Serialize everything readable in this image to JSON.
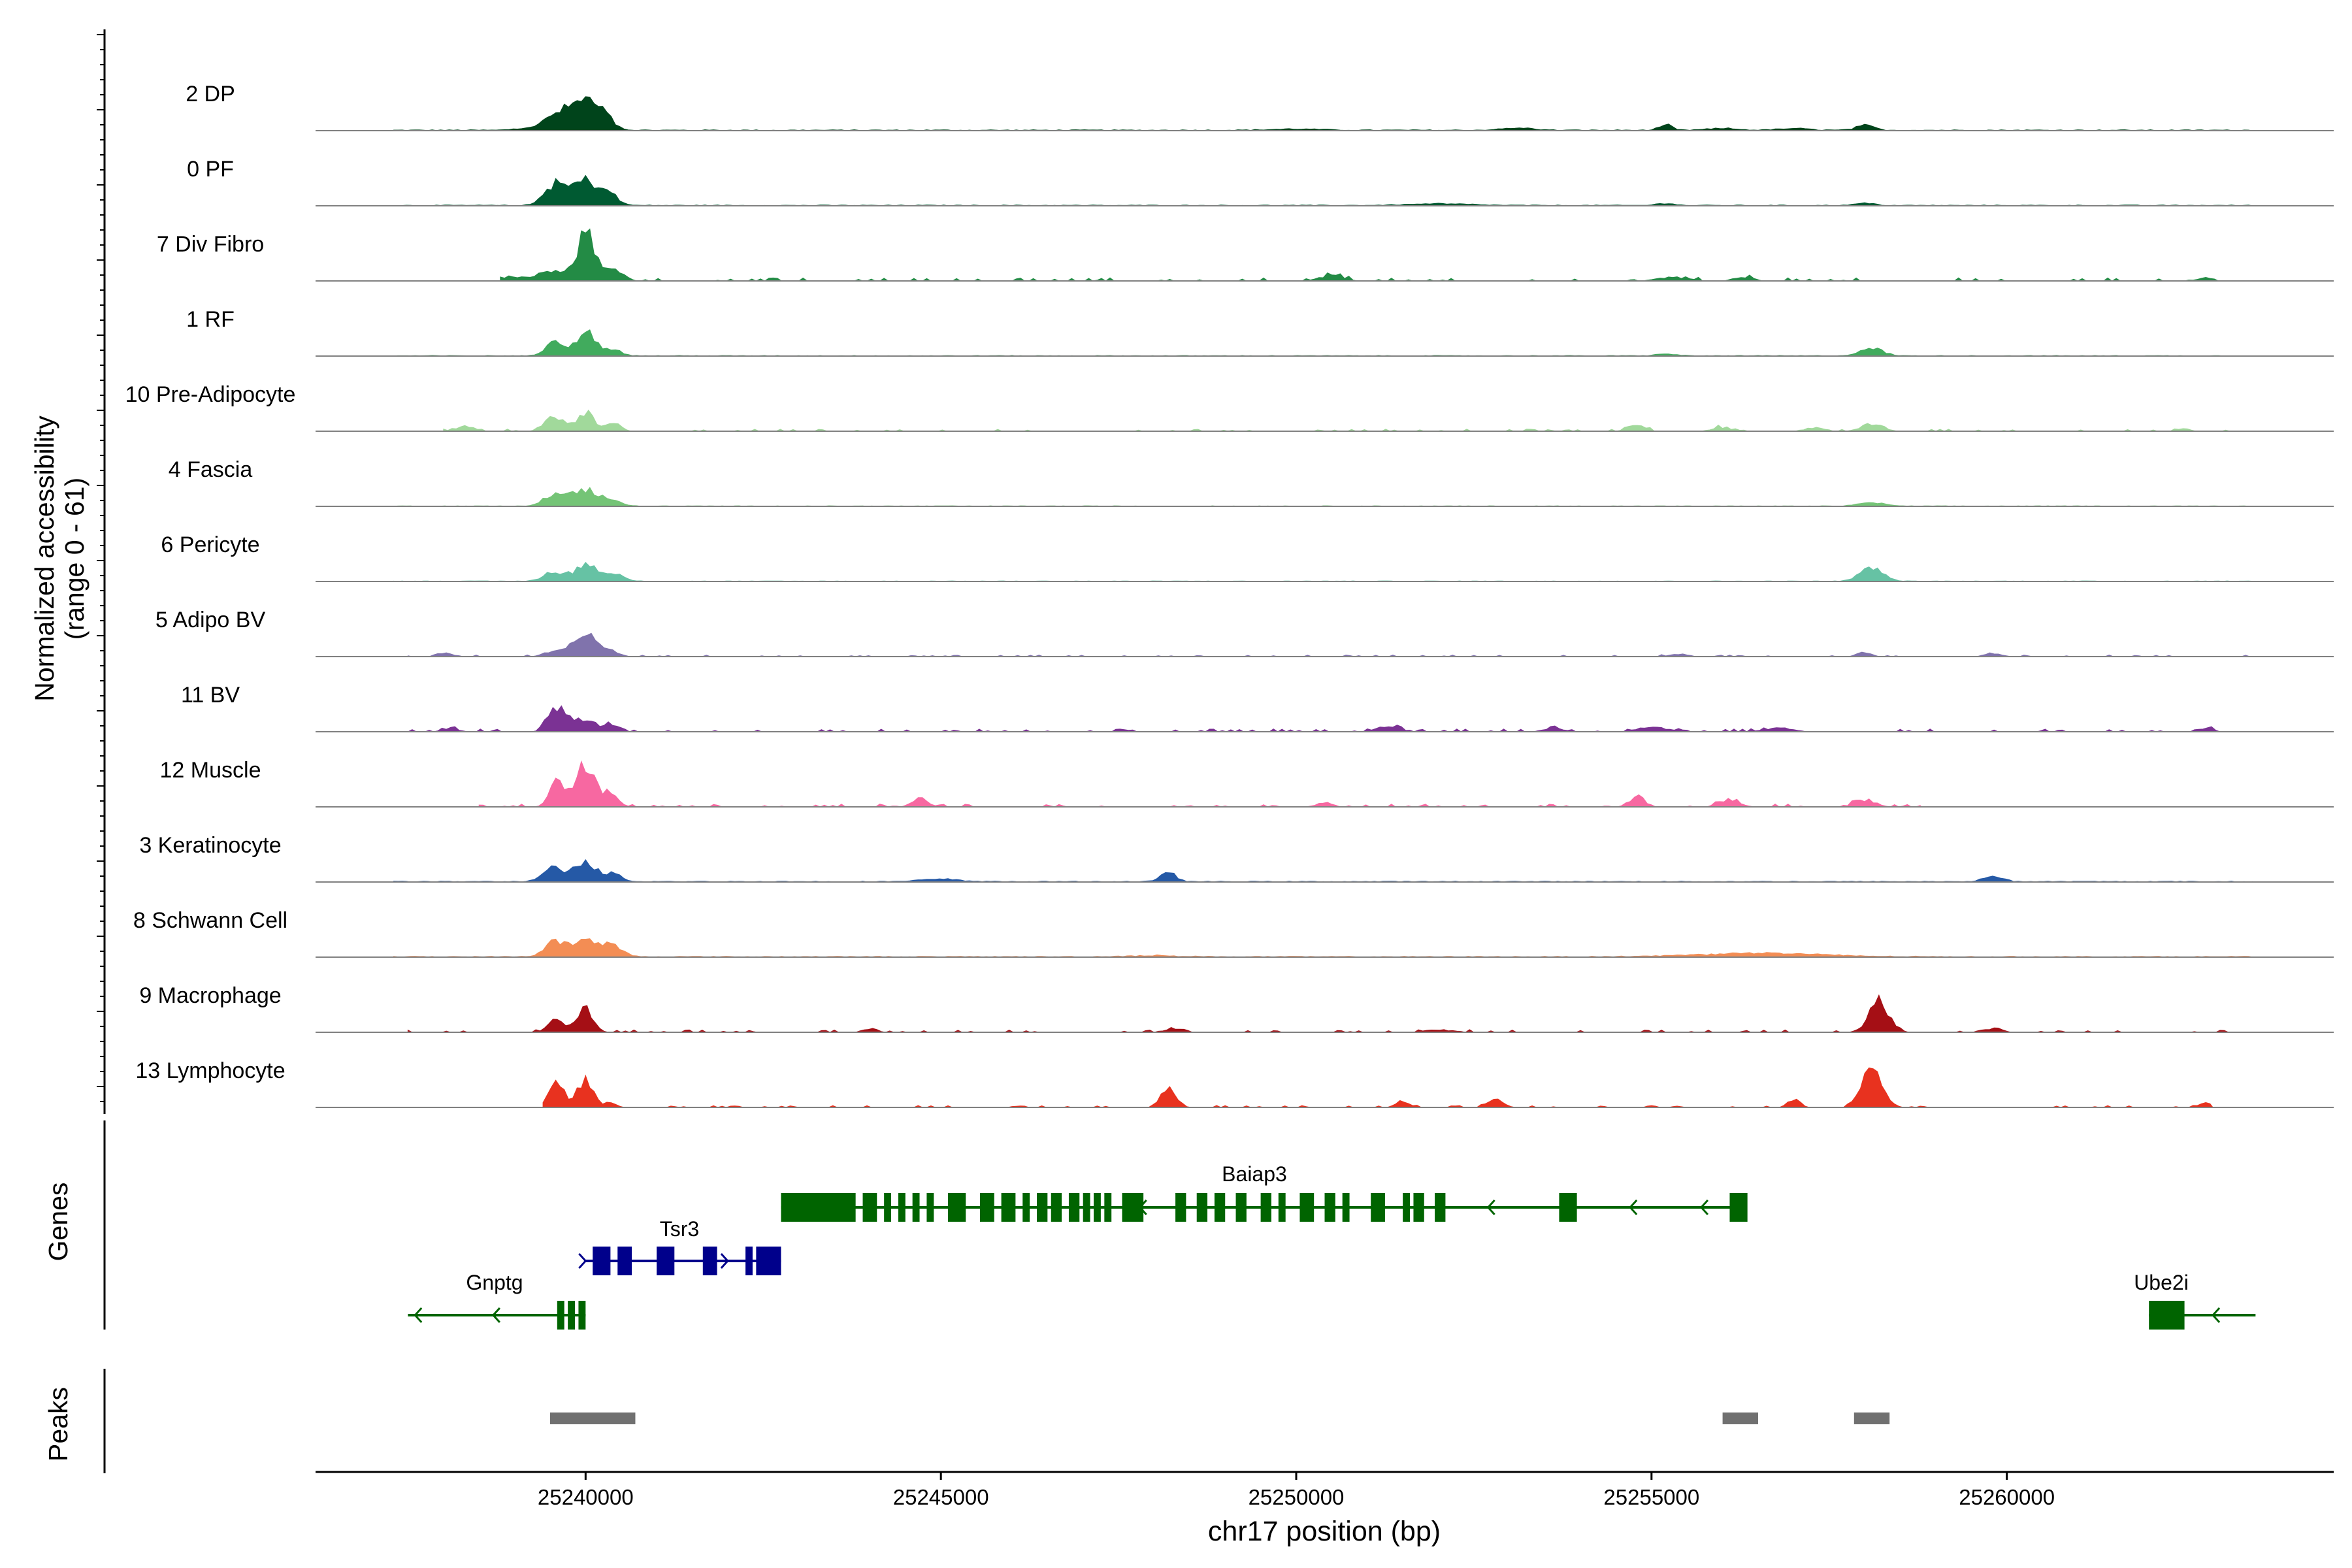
{
  "chart_data": {
    "type": "area",
    "title": "",
    "chromosome": "chr17",
    "xlabel": "chr17 position (bp)",
    "ylabel_line1": "Normalized accessibility",
    "ylabel_line2": "(range 0 - 61)",
    "y_range": [
      0,
      61
    ],
    "xlim": [
      25236200,
      25264600
    ],
    "x_ticks": [
      25240000,
      25245000,
      25250000,
      25255000,
      25260000
    ],
    "x_tick_labels": [
      "25240000",
      "25245000",
      "25250000",
      "25255000",
      "25260000"
    ],
    "tracks": [
      {
        "name": "2 DP",
        "color": "#00441b",
        "peaks": [
          [
            25239600,
            12,
            240
          ],
          [
            25240000,
            25,
            280
          ],
          [
            25240300,
            6,
            150
          ],
          [
            25239200,
            2,
            250
          ],
          [
            25253100,
            2,
            300
          ],
          [
            25255200,
            5,
            120
          ],
          [
            25258000,
            4,
            180
          ],
          [
            25257000,
            1.5,
            300
          ],
          [
            25256000,
            1.5,
            300
          ],
          [
            25250000,
            1,
            500
          ]
        ],
        "noise": 0.8,
        "range": [
          25237300,
          25263500
        ]
      },
      {
        "name": "0 PF",
        "color": "#005a32",
        "peaks": [
          [
            25239550,
            16,
            200
          ],
          [
            25240000,
            21,
            300
          ],
          [
            25240350,
            6,
            150
          ],
          [
            25252000,
            1.5,
            600
          ],
          [
            25258000,
            2,
            200
          ],
          [
            25255200,
            2,
            160
          ]
        ],
        "noise": 0.7,
        "range": [
          25237300,
          25263500
        ]
      },
      {
        "name": "7 Div Fibro",
        "color": "#238b45",
        "peaks": [
          [
            25240000,
            40,
            180
          ],
          [
            25239500,
            8,
            250
          ],
          [
            25240400,
            10,
            180
          ],
          [
            25239000,
            3,
            250
          ],
          [
            25250500,
            4,
            250
          ],
          [
            25255300,
            3,
            300
          ],
          [
            25256300,
            3,
            200
          ],
          [
            25262800,
            3,
            150
          ]
        ],
        "noise": 1.3,
        "range": [
          25238800,
          25263000
        ],
        "sparse": true
      },
      {
        "name": "1 RF",
        "color": "#41ab5d",
        "peaks": [
          [
            25239550,
            11,
            160
          ],
          [
            25240000,
            20,
            200
          ],
          [
            25240400,
            6,
            150
          ],
          [
            25258100,
            6,
            220
          ],
          [
            25255200,
            1.5,
            200
          ]
        ],
        "noise": 0.6,
        "range": [
          25237300,
          25263500
        ]
      },
      {
        "name": "10 Pre-Adipocyte",
        "color": "#a1d99b",
        "peaks": [
          [
            25239550,
            12,
            180
          ],
          [
            25240000,
            15,
            180
          ],
          [
            25240400,
            6,
            150
          ],
          [
            25238300,
            4,
            180
          ],
          [
            25254800,
            5,
            160
          ],
          [
            25258100,
            6,
            200
          ],
          [
            25257300,
            3,
            200
          ],
          [
            25256000,
            3,
            200
          ],
          [
            25262500,
            2,
            120
          ]
        ],
        "noise": 0.9,
        "range": [
          25238000,
          25263500
        ],
        "sparse": true
      },
      {
        "name": "4 Fascia",
        "color": "#74c476",
        "peaks": [
          [
            25239550,
            10,
            200
          ],
          [
            25240000,
            14,
            260
          ],
          [
            25240400,
            5,
            150
          ],
          [
            25258100,
            3,
            250
          ]
        ],
        "noise": 0.5,
        "range": [
          25237300,
          25263500
        ]
      },
      {
        "name": "6 Pericyte",
        "color": "#66c2a4",
        "peaks": [
          [
            25239550,
            8,
            200
          ],
          [
            25240000,
            14,
            220
          ],
          [
            25240400,
            7,
            180
          ],
          [
            25258100,
            12,
            220
          ]
        ],
        "noise": 0.5,
        "range": [
          25237300,
          25263500
        ]
      },
      {
        "name": "5 Adipo BV",
        "color": "#8073ac",
        "peaks": [
          [
            25240000,
            20,
            220
          ],
          [
            25239600,
            6,
            200
          ],
          [
            25240400,
            4,
            150
          ],
          [
            25238000,
            3,
            150
          ],
          [
            25258000,
            3,
            150
          ],
          [
            25259800,
            3,
            150
          ],
          [
            25255400,
            2,
            200
          ]
        ],
        "noise": 0.7,
        "range": [
          25237500,
          25263500
        ],
        "sparse": true
      },
      {
        "name": "11 BV",
        "color": "#7b3294",
        "peaks": [
          [
            25239600,
            22,
            160
          ],
          [
            25240000,
            12,
            200
          ],
          [
            25240400,
            6,
            150
          ],
          [
            25251300,
            5,
            200
          ],
          [
            25255000,
            4,
            300
          ],
          [
            25256800,
            3,
            300
          ],
          [
            25238100,
            3,
            150
          ],
          [
            25253600,
            3,
            200
          ],
          [
            25262800,
            3,
            150
          ]
        ],
        "noise": 1.2,
        "range": [
          25237500,
          25263000
        ],
        "sparse": true
      },
      {
        "name": "12 Muscle",
        "color": "#f768a1",
        "peaks": [
          [
            25240000,
            34,
            200
          ],
          [
            25239600,
            20,
            150
          ],
          [
            25240350,
            10,
            150
          ],
          [
            25244700,
            7,
            150
          ],
          [
            25254800,
            9,
            150
          ],
          [
            25256100,
            6,
            200
          ],
          [
            25258000,
            6,
            200
          ],
          [
            25250400,
            4,
            150
          ]
        ],
        "noise": 1.2,
        "range": [
          25238500,
          25258800
        ],
        "sparse": true
      },
      {
        "name": "3 Keratinocyte",
        "color": "#2559a6",
        "peaks": [
          [
            25239550,
            11,
            200
          ],
          [
            25240000,
            17,
            220
          ],
          [
            25240400,
            6,
            150
          ],
          [
            25248200,
            8,
            150
          ],
          [
            25259800,
            4,
            200
          ],
          [
            25245000,
            2,
            400
          ]
        ],
        "noise": 0.8,
        "range": [
          25237300,
          25263500
        ]
      },
      {
        "name": "8 Schwann Cell",
        "color": "#f38d54",
        "peaks": [
          [
            25239550,
            11,
            200
          ],
          [
            25240000,
            14,
            300
          ],
          [
            25240400,
            7,
            200
          ],
          [
            25256500,
            3,
            1200
          ],
          [
            25248000,
            1,
            500
          ]
        ],
        "noise": 0.8,
        "range": [
          25237300,
          25263500
        ]
      },
      {
        "name": "9 Macrophage",
        "color": "#a50f15",
        "peaks": [
          [
            25240000,
            20,
            150
          ],
          [
            25239600,
            12,
            150
          ],
          [
            25258200,
            26,
            200
          ],
          [
            25248300,
            3,
            200
          ],
          [
            25252000,
            2,
            300
          ],
          [
            25259800,
            3,
            200
          ],
          [
            25244000,
            3,
            150
          ]
        ],
        "noise": 1.0,
        "range": [
          25237500,
          25263500
        ],
        "sparse": true
      },
      {
        "name": "13 Lymphocyte",
        "color": "#e8321f",
        "peaks": [
          [
            25239600,
            22,
            150
          ],
          [
            25240000,
            22,
            150
          ],
          [
            25240350,
            5,
            100
          ],
          [
            25248200,
            16,
            150
          ],
          [
            25258100,
            34,
            200
          ],
          [
            25257000,
            7,
            120
          ],
          [
            25251500,
            5,
            150
          ],
          [
            25252800,
            7,
            150
          ],
          [
            25262800,
            4,
            150
          ]
        ],
        "noise": 0.8,
        "range": [
          25239400,
          25262900
        ],
        "sparse": true
      }
    ],
    "genes_panel_label": "Genes",
    "genes": [
      {
        "name": "Baiap3",
        "strand": "-",
        "start": 25242750,
        "end": 25256300,
        "row": 0,
        "color": "#006400",
        "exons": [
          [
            25242750,
            25243800
          ],
          [
            25243900,
            25244100
          ],
          [
            25244200,
            25244300
          ],
          [
            25244400,
            25244500
          ],
          [
            25244600,
            25244700
          ],
          [
            25244800,
            25244900
          ],
          [
            25245100,
            25245350
          ],
          [
            25245550,
            25245750
          ],
          [
            25245850,
            25246050
          ],
          [
            25246150,
            25246250
          ],
          [
            25246350,
            25246500
          ],
          [
            25246550,
            25246700
          ],
          [
            25246800,
            25246950
          ],
          [
            25247000,
            25247100
          ],
          [
            25247150,
            25247250
          ],
          [
            25247300,
            25247400
          ],
          [
            25247550,
            25247850
          ],
          [
            25248300,
            25248450
          ],
          [
            25248600,
            25248750
          ],
          [
            25248850,
            25249000
          ],
          [
            25249150,
            25249300
          ],
          [
            25249500,
            25249650
          ],
          [
            25249750,
            25249850
          ],
          [
            25250050,
            25250250
          ],
          [
            25250400,
            25250550
          ],
          [
            25250650,
            25250750
          ],
          [
            25251050,
            25251250
          ],
          [
            25251500,
            25251600
          ],
          [
            25251650,
            25251800
          ],
          [
            25251950,
            25252100
          ],
          [
            25253700,
            25253950
          ],
          [
            25256100,
            25256350
          ]
        ],
        "arrows": [
          25247800,
          25252700,
          25254700,
          25255700
        ]
      },
      {
        "name": "Tsr3",
        "strand": "+",
        "start": 25240000,
        "end": 25242750,
        "row": 1,
        "color": "#00008b",
        "exons": [
          [
            25240100,
            25240350
          ],
          [
            25240450,
            25240650
          ],
          [
            25241000,
            25241250
          ],
          [
            25241650,
            25241850
          ],
          [
            25242250,
            25242350
          ],
          [
            25242400,
            25242750
          ]
        ],
        "arrows": [
          25240000,
          25242000
        ]
      },
      {
        "name": "Gnptg",
        "strand": "-",
        "start": 25237500,
        "end": 25240000,
        "row": 2,
        "color": "#006400",
        "exons": [
          [
            25239600,
            25239700
          ],
          [
            25239750,
            25239850
          ],
          [
            25239900,
            25240000
          ]
        ],
        "arrows": [
          25237600,
          25238700
        ]
      },
      {
        "name": "Ube2i",
        "strand": "-",
        "start": 25262000,
        "end": 25263500,
        "row": 2,
        "color": "#006400",
        "exons": [
          [
            25262000,
            25262500
          ]
        ],
        "arrows": [
          25262900
        ]
      }
    ],
    "peaks_panel_label": "Peaks",
    "peak_regions": [
      [
        25239500,
        25240700
      ],
      [
        25256000,
        25256500
      ],
      [
        25257850,
        25258350
      ]
    ],
    "peak_color": "#707070"
  }
}
